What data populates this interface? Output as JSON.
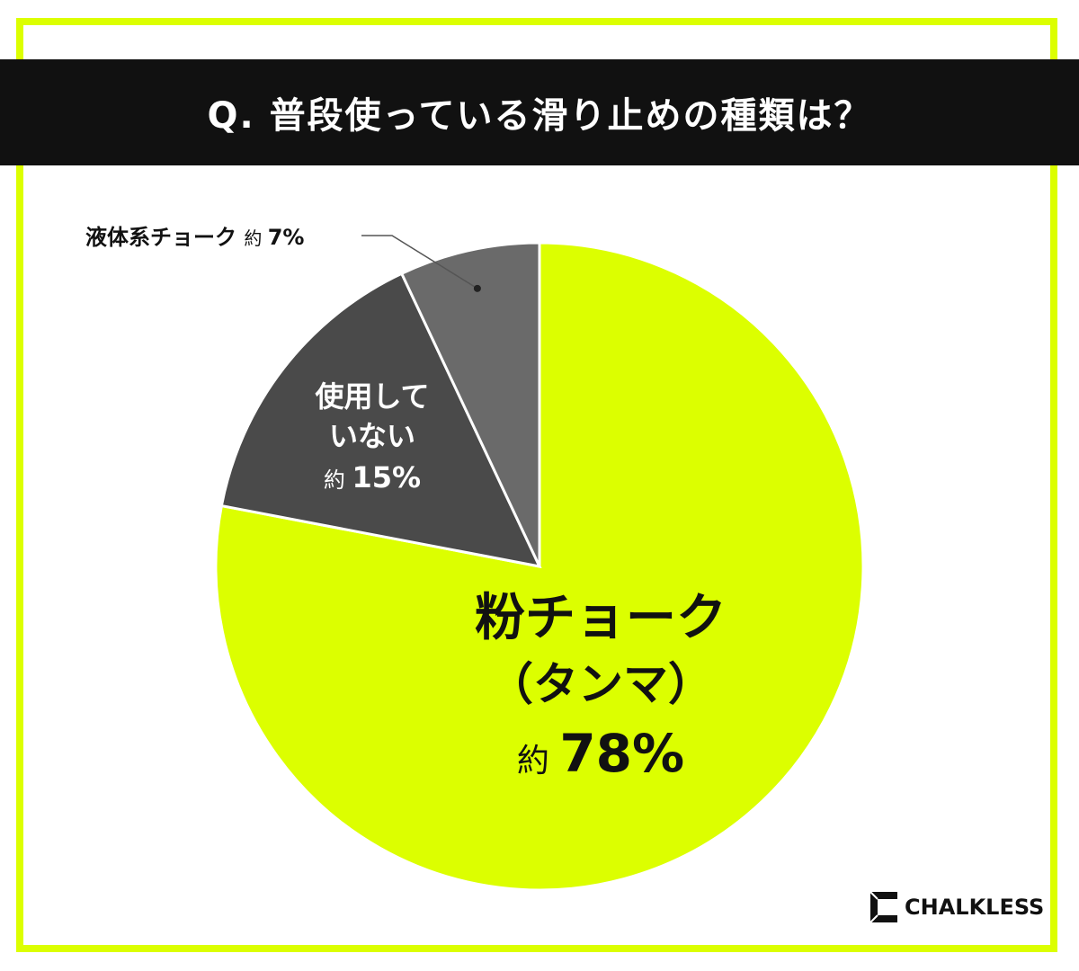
{
  "title": "Q. 普段使っている滑り止めの種類は？",
  "chart_data": {
    "type": "pie",
    "slices": [
      {
        "label_lines": [
          "粉チョーク",
          "（タンマ）"
        ],
        "prefix": "約",
        "value_text": "78%",
        "value": 78,
        "color": "#dcff00",
        "text_color": "#111111"
      },
      {
        "label_lines": [
          "使用して",
          "いない"
        ],
        "prefix": "約",
        "value_text": "15%",
        "value": 15,
        "color": "#4a4a4a",
        "text_color": "#ffffff"
      },
      {
        "label_lines": [
          "液体系チョーク"
        ],
        "prefix": "約",
        "value_text": "7%",
        "value": 7,
        "color": "#6a6a6a",
        "text_color": "#111111"
      }
    ]
  },
  "brand": {
    "name": "CHALKLESS"
  },
  "colors": {
    "accent": "#dcff00",
    "title_bg": "#111111"
  }
}
